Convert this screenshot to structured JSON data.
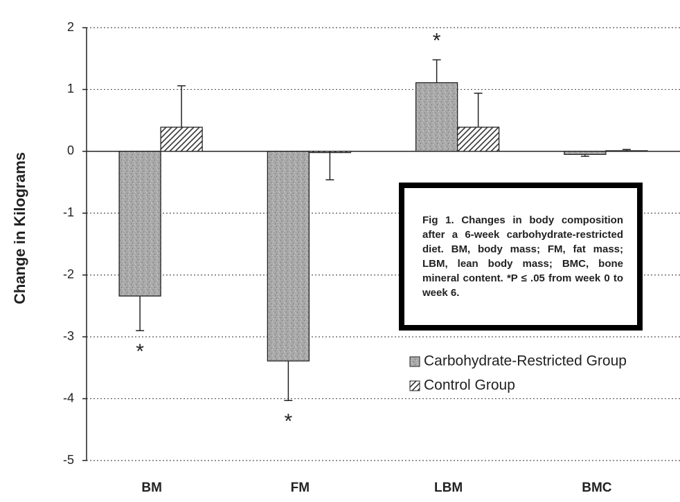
{
  "chart_data": {
    "type": "bar",
    "y_label": "Change in Kilograms",
    "categories": [
      "BM",
      "FM",
      "LBM",
      "BMC"
    ],
    "series": [
      {
        "name": "Carbohydrate-Restricted Group",
        "color": "#a8a8a8",
        "pattern": "speckle",
        "values": [
          -2.34,
          -3.39,
          1.11,
          -0.05
        ],
        "errors": [
          0.56,
          0.64,
          0.37,
          0.03
        ],
        "significance": [
          "*",
          "*",
          "*",
          null
        ]
      },
      {
        "name": "Control Group",
        "color": "#333333",
        "pattern": "hatch",
        "values": [
          0.39,
          -0.02,
          0.39,
          0.01
        ],
        "errors": [
          0.67,
          0.44,
          0.55,
          0.02
        ]
      }
    ],
    "ylim": [
      -5,
      2
    ],
    "yticks": [
      -5,
      -4,
      -3,
      -2,
      -1,
      0,
      1,
      2
    ],
    "grid": true,
    "caption": "Fig 1.   Changes in body composition after a 6-week carbohydrate-restricted diet. BM, body mass; FM, fat mass; LBM, lean body mass; BMC, bone mineral content. *P ≤ .05 from week 0 to week 6."
  }
}
